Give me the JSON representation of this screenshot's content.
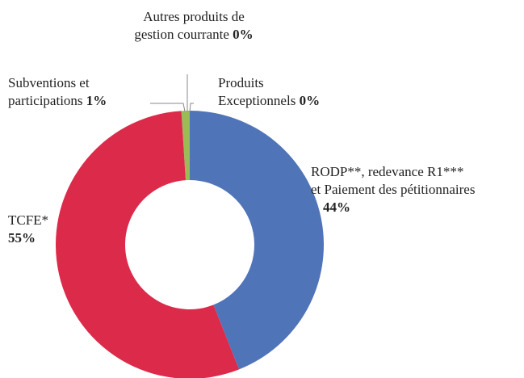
{
  "chart_data": {
    "type": "donut",
    "categories": [
      "RODP**, redevance R1***\net Paiement des pétitionnaires",
      "TCFE*",
      "Subventions et\nparticipations",
      "Autres produits de\ngestion courrante",
      "Produits\nExceptionnels"
    ],
    "values": [
      44,
      55,
      1,
      0,
      0
    ],
    "value_labels": [
      "44%",
      "55%",
      "1%",
      "0%",
      "0%"
    ],
    "colors": [
      "#4f74b8",
      "#dc2a4a",
      "#9bbb59",
      "#8064a2",
      "#4bacc6"
    ]
  }
}
